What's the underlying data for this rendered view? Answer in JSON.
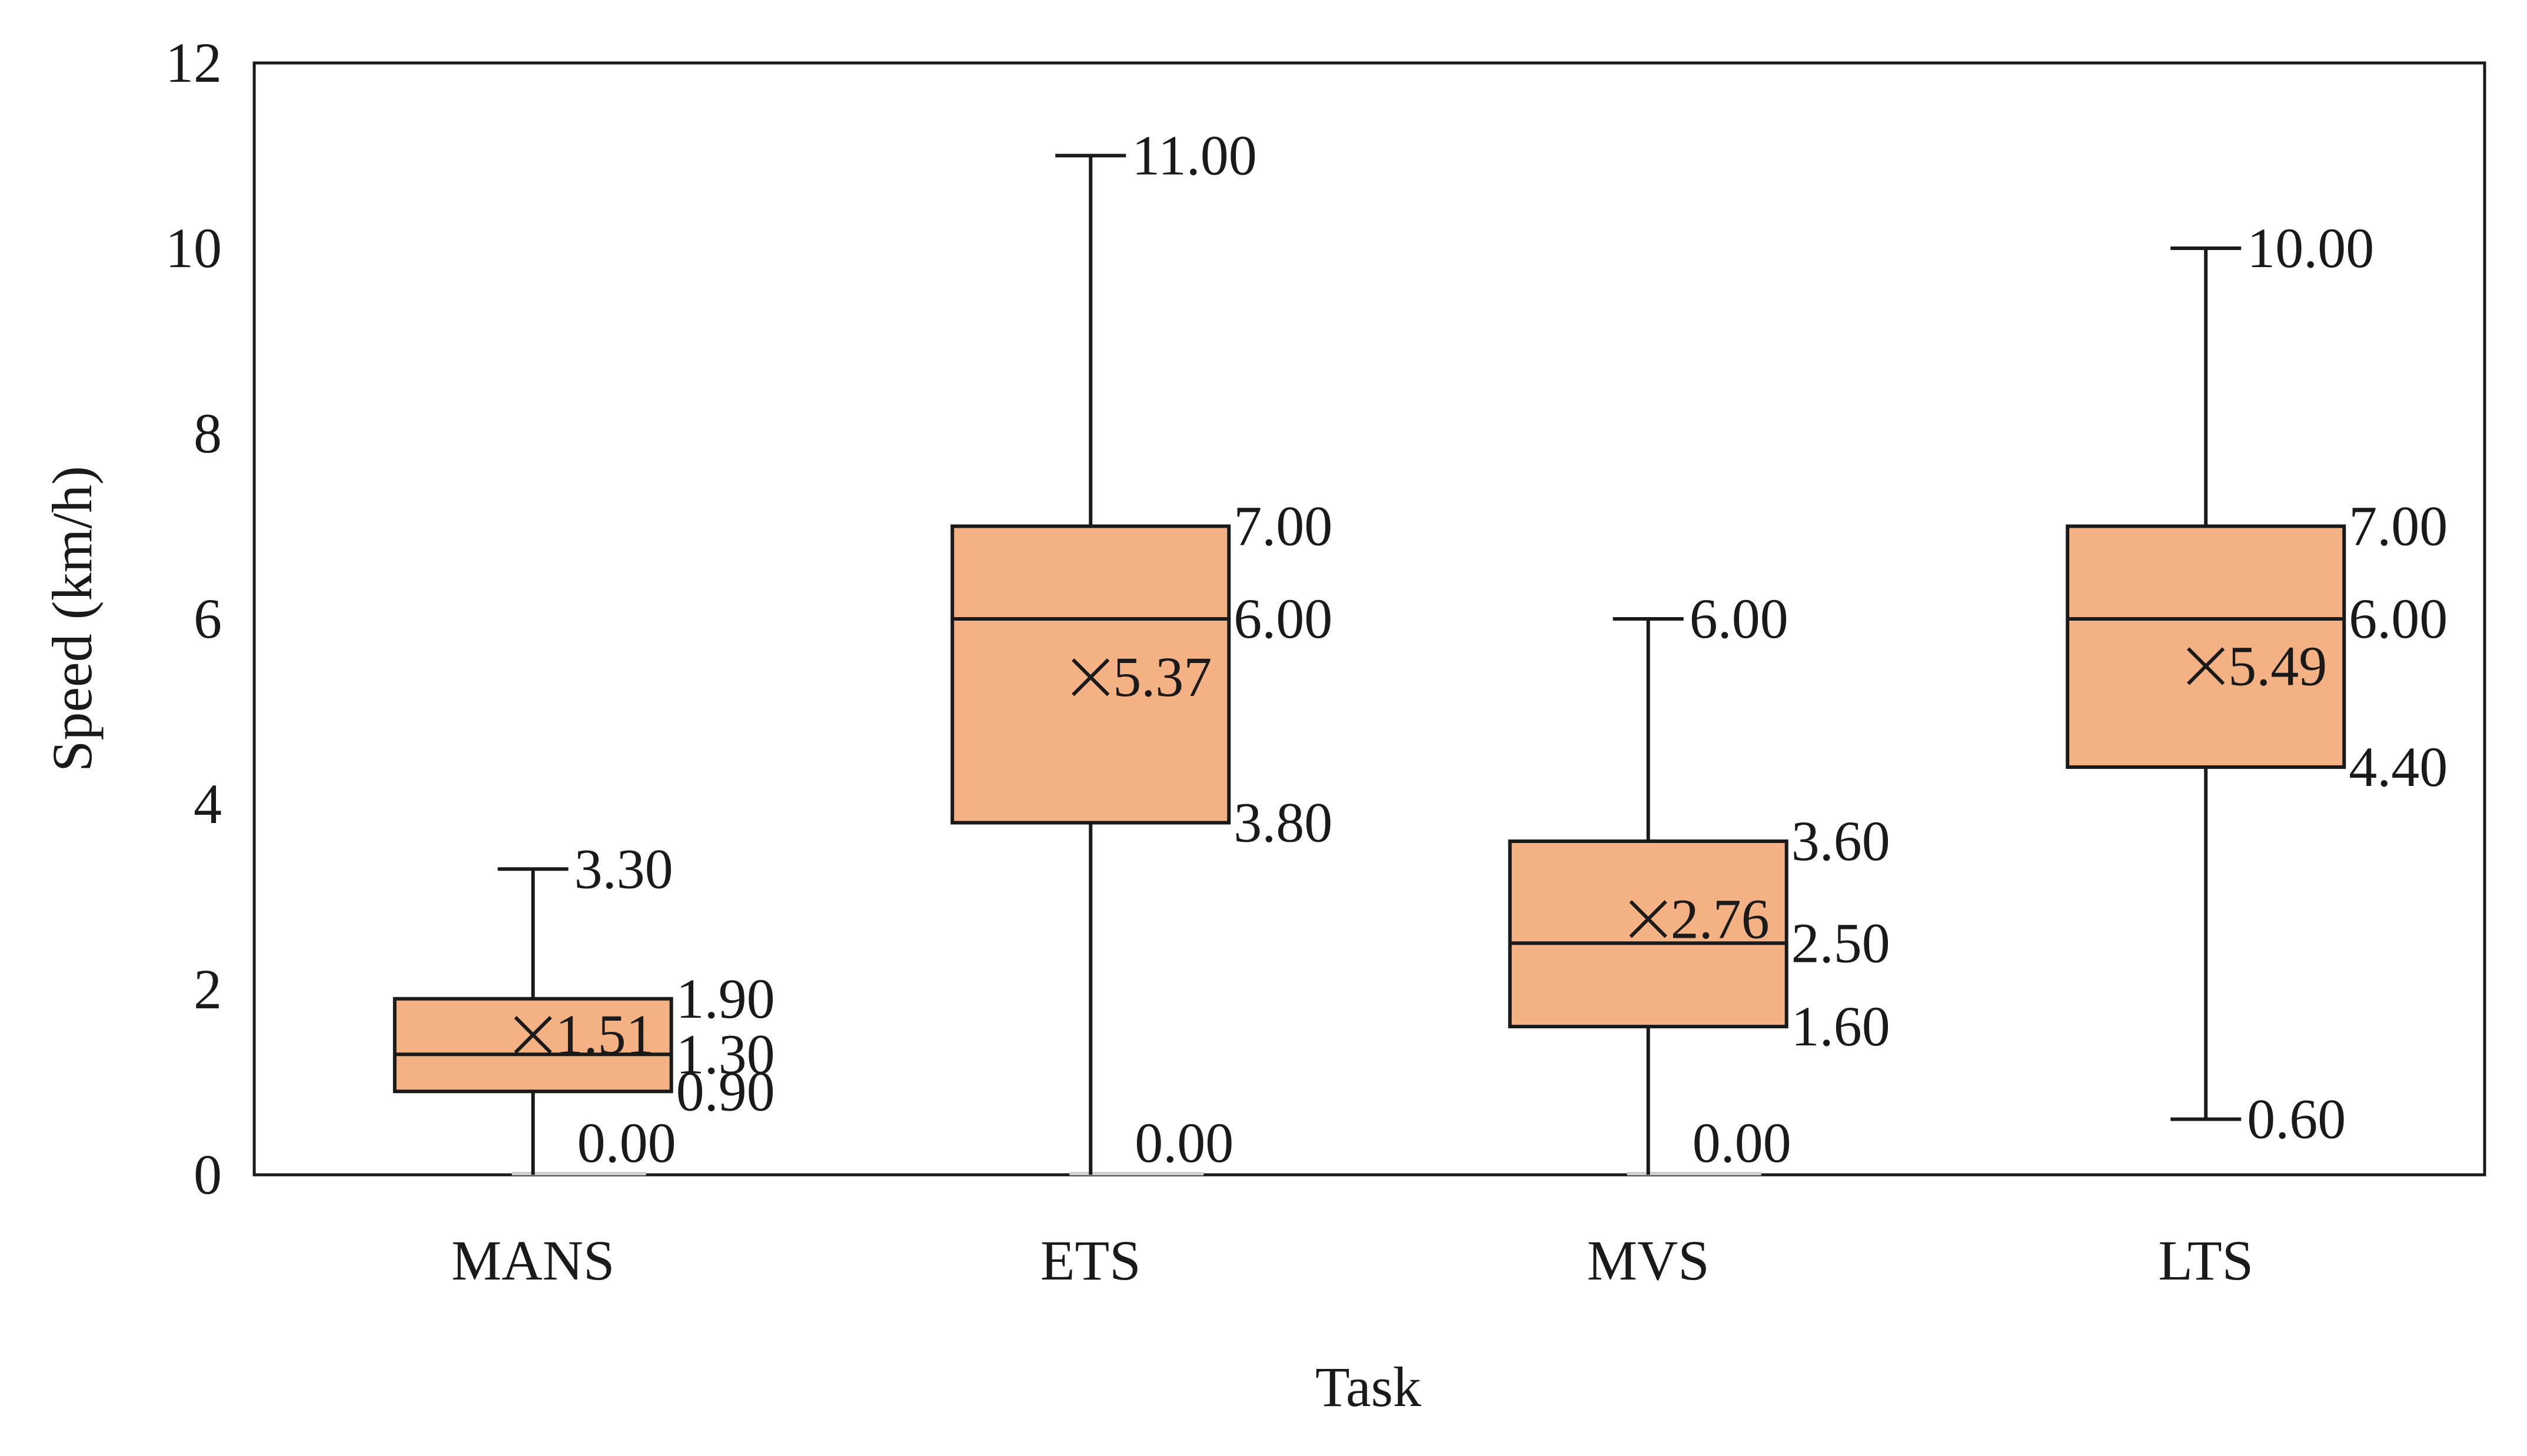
{
  "chart_data": {
    "type": "box",
    "xlabel": "Task",
    "ylabel": "Speed (km/h)",
    "ylim": [
      0,
      12
    ],
    "yticks": [
      0,
      2,
      4,
      6,
      8,
      10,
      12
    ],
    "grid": false,
    "colors": {
      "box_fill": "#f4b183",
      "stroke": "#1a1a1a"
    },
    "categories": [
      "MANS",
      "ETS",
      "MVS",
      "LTS"
    ],
    "boxes": [
      {
        "category": "MANS",
        "min": 0.0,
        "q1": 0.9,
        "median": 1.3,
        "q3": 1.9,
        "max": 3.3,
        "mean": 1.51,
        "labels": {
          "max": "3.30",
          "q3": "1.90",
          "median": "1.30",
          "q1": "0.90",
          "min": "0.00",
          "mean": "1.51"
        }
      },
      {
        "category": "ETS",
        "min": 0.0,
        "q1": 3.8,
        "median": 6.0,
        "q3": 7.0,
        "max": 11.0,
        "mean": 5.37,
        "labels": {
          "max": "11.00",
          "q3": "7.00",
          "median": "6.00",
          "q1": "3.80",
          "min": "0.00",
          "mean": "5.37"
        }
      },
      {
        "category": "MVS",
        "min": 0.0,
        "q1": 1.6,
        "median": 2.5,
        "q3": 3.6,
        "max": 6.0,
        "mean": 2.76,
        "labels": {
          "max": "6.00",
          "q3": "3.60",
          "median": "2.50",
          "q1": "1.60",
          "min": "0.00",
          "mean": "2.76"
        }
      },
      {
        "category": "LTS",
        "min": 0.6,
        "q1": 4.4,
        "median": 6.0,
        "q3": 7.0,
        "max": 10.0,
        "mean": 5.49,
        "labels": {
          "max": "10.00",
          "q3": "7.00",
          "median": "6.00",
          "q1": "4.40",
          "min": "0.60",
          "mean": "5.49"
        }
      }
    ]
  }
}
